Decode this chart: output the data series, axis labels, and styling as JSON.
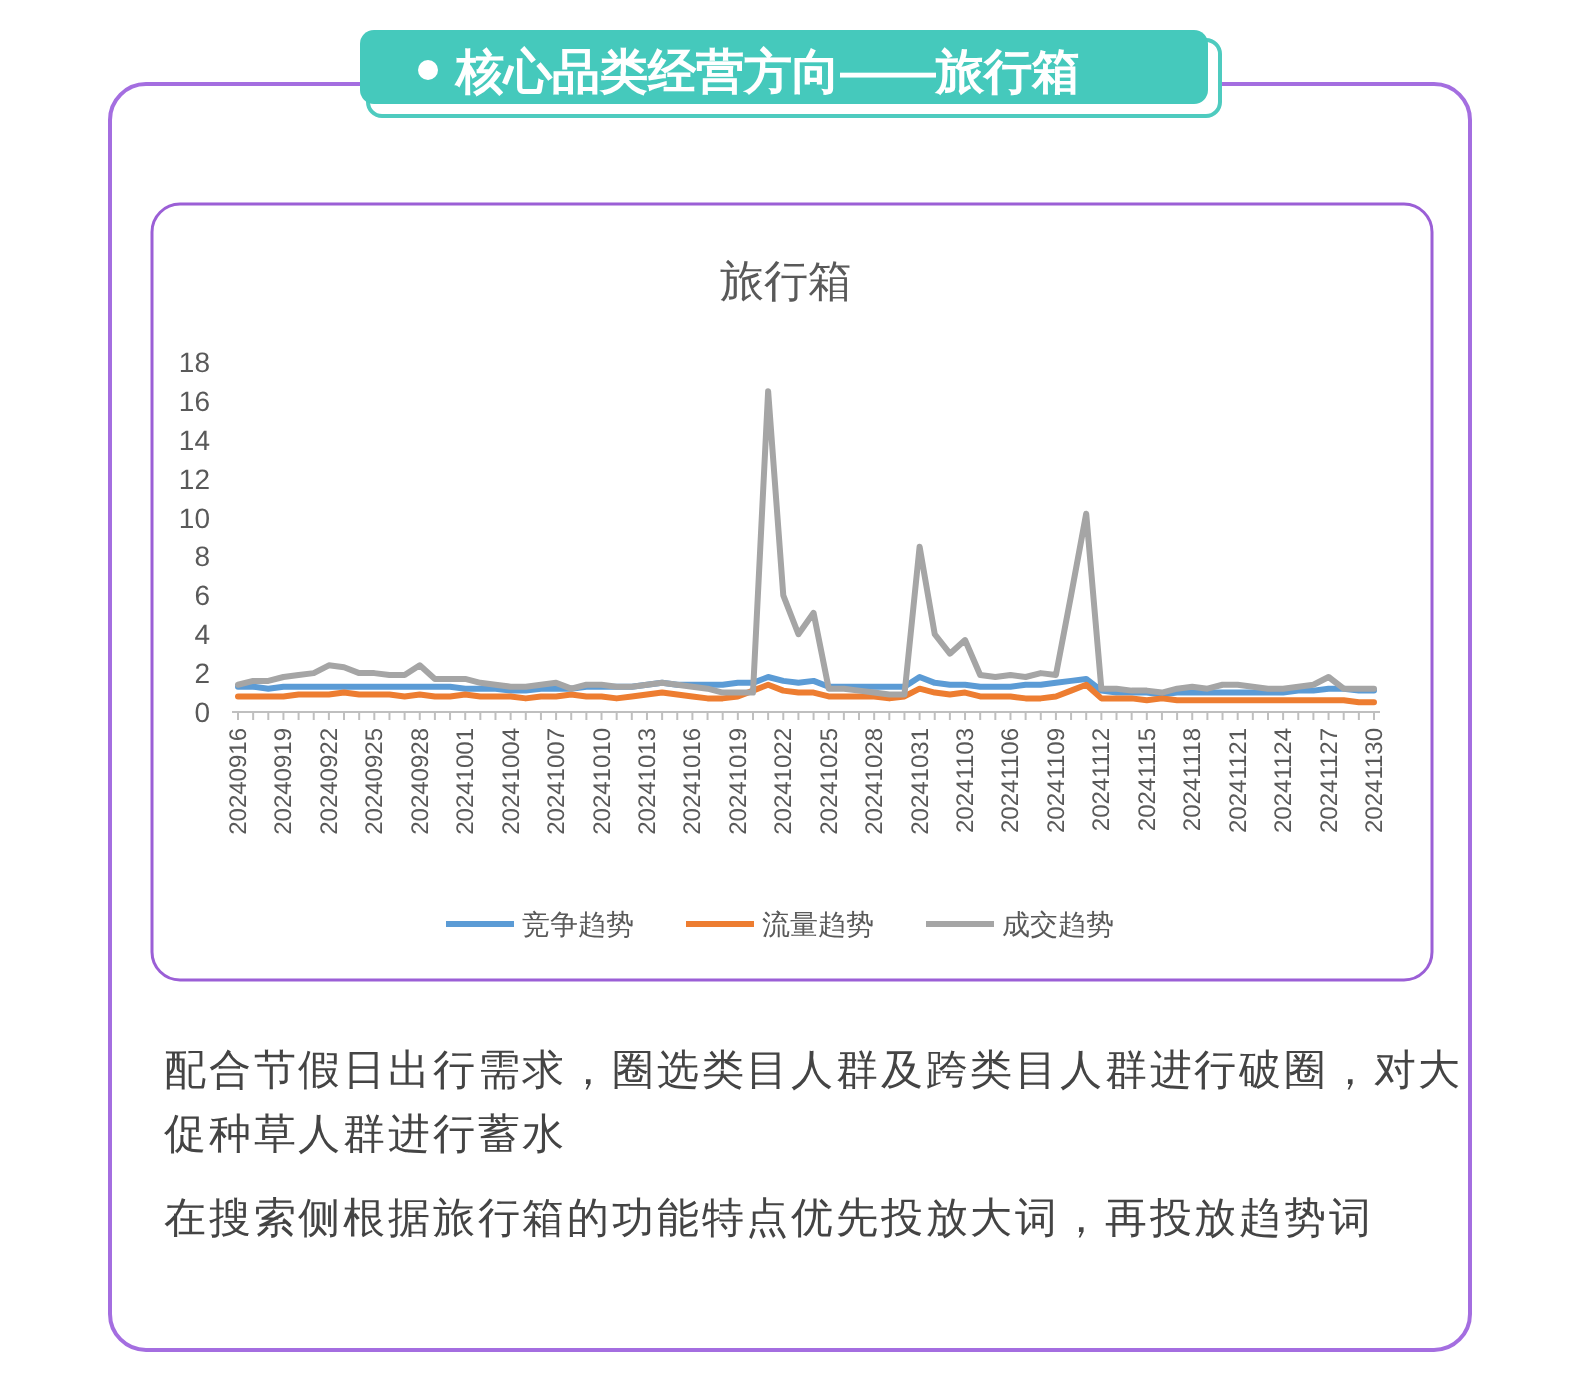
{
  "chart_data": {
    "type": "line",
    "title": "旅行箱",
    "annotations": [
      "核心品类经营方向——旅行箱",
      "配合节假日出行需求，圈选类目人群及跨类目人群进行破圈，对大促种草人群进行蓄水",
      "在搜索侧根据旅行箱的功能特点优先投放大词，再投放趋势词"
    ],
    "categories": [
      "20240916",
      null,
      null,
      "20240919",
      null,
      null,
      "20240922",
      null,
      null,
      "20240925",
      null,
      null,
      "20240928",
      null,
      null,
      "20241001",
      null,
      null,
      "20241004",
      null,
      null,
      "20241007",
      null,
      null,
      "20241010",
      null,
      null,
      "20241013",
      null,
      null,
      "20241016",
      null,
      null,
      "20241019",
      null,
      null,
      "20241022",
      null,
      null,
      "20241025",
      null,
      null,
      "20241028",
      null,
      null,
      "20241031",
      null,
      null,
      "20241103",
      null,
      null,
      "20241106",
      null,
      null,
      "20241109",
      null,
      null,
      "20241112",
      null,
      null,
      "20241115",
      null,
      null,
      "20241118",
      null,
      null,
      "20241121",
      null,
      null,
      "20241124",
      null,
      null,
      "20241127",
      null,
      null,
      "20241130"
    ],
    "series": [
      {
        "name": "竞争趋势",
        "color": "#5b9bd5",
        "values": [
          1.3,
          1.3,
          1.2,
          1.3,
          1.3,
          1.3,
          1.3,
          1.3,
          1.3,
          1.3,
          1.3,
          1.3,
          1.3,
          1.3,
          1.3,
          1.2,
          1.2,
          1.2,
          1.1,
          1.1,
          1.2,
          1.2,
          1.2,
          1.3,
          1.3,
          1.3,
          1.3,
          1.4,
          1.5,
          1.4,
          1.4,
          1.4,
          1.4,
          1.5,
          1.5,
          1.8,
          1.6,
          1.5,
          1.6,
          1.3,
          1.3,
          1.3,
          1.3,
          1.3,
          1.3,
          1.8,
          1.5,
          1.4,
          1.4,
          1.3,
          1.3,
          1.3,
          1.4,
          1.4,
          1.5,
          1.6,
          1.7,
          1.1,
          1.0,
          1.0,
          1.0,
          0.9,
          1.0,
          1.0,
          1.0,
          1.0,
          1.0,
          1.0,
          1.0,
          1.0,
          1.1,
          1.1,
          1.2,
          1.2,
          1.1,
          1.1
        ]
      },
      {
        "name": "流量趋势",
        "color": "#ed7d31",
        "values": [
          0.8,
          0.8,
          0.8,
          0.8,
          0.9,
          0.9,
          0.9,
          1.0,
          0.9,
          0.9,
          0.9,
          0.8,
          0.9,
          0.8,
          0.8,
          0.9,
          0.8,
          0.8,
          0.8,
          0.7,
          0.8,
          0.8,
          0.9,
          0.8,
          0.8,
          0.7,
          0.8,
          0.9,
          1.0,
          0.9,
          0.8,
          0.7,
          0.7,
          0.8,
          1.1,
          1.4,
          1.1,
          1.0,
          1.0,
          0.8,
          0.8,
          0.8,
          0.8,
          0.7,
          0.8,
          1.2,
          1.0,
          0.9,
          1.0,
          0.8,
          0.8,
          0.8,
          0.7,
          0.7,
          0.8,
          1.1,
          1.4,
          0.7,
          0.7,
          0.7,
          0.6,
          0.7,
          0.6,
          0.6,
          0.6,
          0.6,
          0.6,
          0.6,
          0.6,
          0.6,
          0.6,
          0.6,
          0.6,
          0.6,
          0.5,
          0.5
        ]
      },
      {
        "name": "成交趋势",
        "color": "#a5a5a5",
        "values": [
          1.4,
          1.6,
          1.6,
          1.8,
          1.9,
          2.0,
          2.4,
          2.3,
          2.0,
          2.0,
          1.9,
          1.9,
          2.4,
          1.7,
          1.7,
          1.7,
          1.5,
          1.4,
          1.3,
          1.3,
          1.4,
          1.5,
          1.2,
          1.4,
          1.4,
          1.3,
          1.3,
          1.4,
          1.5,
          1.4,
          1.3,
          1.2,
          1.0,
          1.0,
          1.0,
          16.5,
          6.0,
          4.0,
          5.1,
          1.2,
          1.2,
          1.1,
          1.0,
          0.9,
          0.9,
          8.5,
          4.0,
          3.0,
          3.7,
          1.9,
          1.8,
          1.9,
          1.8,
          2.0,
          1.9,
          6.0,
          10.2,
          1.2,
          1.2,
          1.1,
          1.1,
          1.0,
          1.2,
          1.3,
          1.2,
          1.4,
          1.4,
          1.3,
          1.2,
          1.2,
          1.3,
          1.4,
          1.8,
          1.2,
          1.2,
          1.2
        ]
      }
    ],
    "ylim": [
      0,
      18
    ],
    "yticks": [
      0,
      2,
      4,
      6,
      8,
      10,
      12,
      14,
      16,
      18
    ],
    "legend": "bottom",
    "marker": "none",
    "line_style": "solid"
  }
}
